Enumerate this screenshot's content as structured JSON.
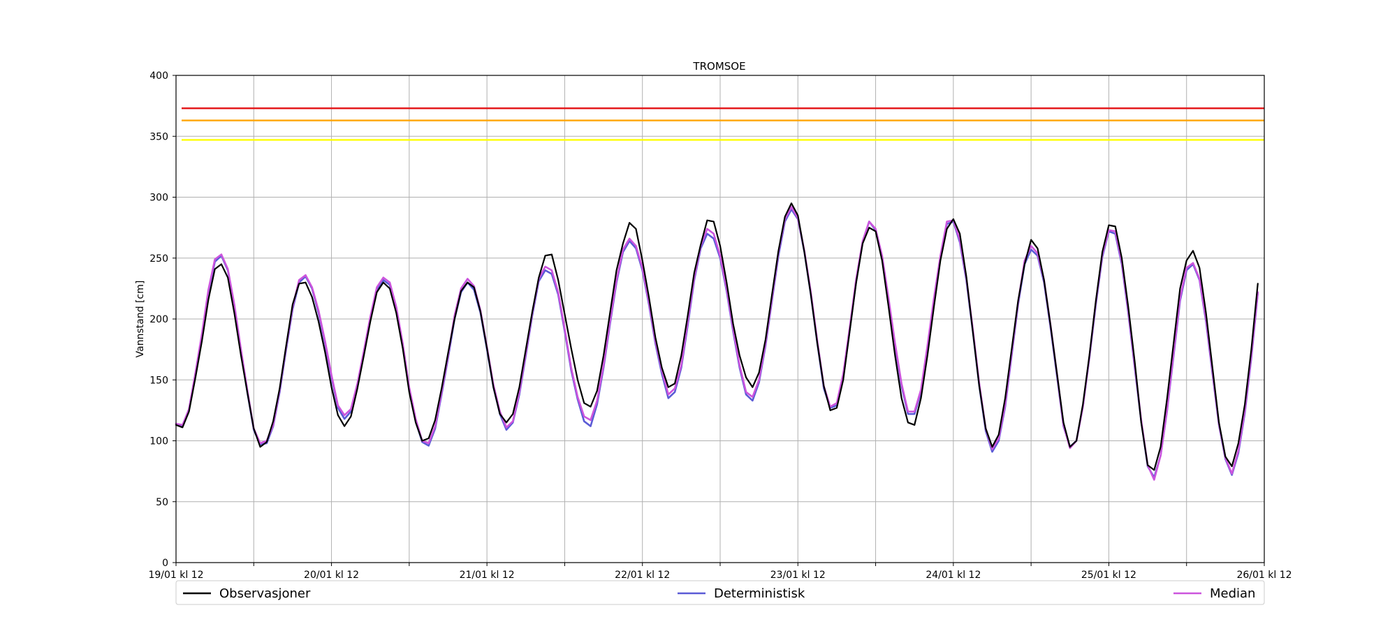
{
  "chart_data": {
    "type": "line",
    "title": "TROMSOE",
    "xlabel": "",
    "ylabel": "Vannstand [cm]",
    "x_unit": "hours",
    "x_step_hours": 1,
    "xlim": [
      0,
      168
    ],
    "ylim": [
      0,
      400
    ],
    "yticks": [
      0,
      50,
      100,
      150,
      200,
      250,
      300,
      350,
      400
    ],
    "xticks": [
      {
        "hour": 0,
        "label": "19/01 kl 12"
      },
      {
        "hour": 12,
        "label": ""
      },
      {
        "hour": 24,
        "label": "20/01 kl 12"
      },
      {
        "hour": 36,
        "label": ""
      },
      {
        "hour": 48,
        "label": "21/01 kl 12"
      },
      {
        "hour": 60,
        "label": ""
      },
      {
        "hour": 72,
        "label": "22/01 kl 12"
      },
      {
        "hour": 84,
        "label": ""
      },
      {
        "hour": 96,
        "label": "23/01 kl 12"
      },
      {
        "hour": 108,
        "label": ""
      },
      {
        "hour": 120,
        "label": "24/01 kl 12"
      },
      {
        "hour": 132,
        "label": ""
      },
      {
        "hour": 144,
        "label": "25/01 kl 12"
      },
      {
        "hour": 156,
        "label": ""
      },
      {
        "hour": 168,
        "label": "26/01 kl 12"
      }
    ],
    "grid": true,
    "legend": "bottom",
    "thresholds": [
      {
        "value": 373,
        "color": "#e41a1c"
      },
      {
        "value": 363,
        "color": "#ffa500"
      },
      {
        "value": 347,
        "color": "#ffff00"
      }
    ],
    "series": [
      {
        "name": "Observasjoner",
        "color": "#000000",
        "values": [
          113,
          111,
          124,
          152,
          182,
          216,
          241,
          245,
          234,
          205,
          171,
          140,
          110,
          95,
          99,
          116,
          143,
          178,
          212,
          229,
          230,
          218,
          198,
          173,
          144,
          121,
          112,
          120,
          143,
          170,
          198,
          222,
          230,
          225,
          205,
          176,
          140,
          115,
          100,
          102,
          117,
          143,
          172,
          200,
          223,
          230,
          226,
          206,
          176,
          144,
          122,
          115,
          122,
          144,
          175,
          206,
          234,
          252,
          253,
          232,
          204,
          176,
          150,
          131,
          128,
          141,
          170,
          205,
          240,
          262,
          279,
          274,
          248,
          218,
          185,
          160,
          144,
          147,
          170,
          203,
          238,
          261,
          281,
          280,
          260,
          230,
          196,
          170,
          152,
          144,
          156,
          183,
          220,
          256,
          284,
          295,
          285,
          255,
          220,
          180,
          145,
          125,
          127,
          150,
          190,
          230,
          262,
          275,
          272,
          248,
          210,
          170,
          135,
          115,
          113,
          135,
          170,
          210,
          248,
          274,
          282,
          270,
          235,
          190,
          145,
          110,
          95,
          105,
          135,
          175,
          215,
          245,
          265,
          258,
          232,
          195,
          155,
          115,
          95,
          100,
          130,
          170,
          215,
          255,
          277,
          276,
          250,
          210,
          165,
          115,
          80,
          76,
          95,
          135,
          180,
          225,
          248,
          256,
          242,
          205,
          160,
          115,
          87,
          79,
          98,
          130,
          175,
          229
        ]
      },
      {
        "name": "Deterministisk",
        "color": "#5b5bd6",
        "values": [
          114,
          112,
          126,
          155,
          186,
          222,
          247,
          252,
          240,
          210,
          175,
          140,
          109,
          97,
          98,
          112,
          140,
          175,
          208,
          230,
          235,
          225,
          205,
          180,
          152,
          127,
          118,
          124,
          145,
          172,
          200,
          224,
          232,
          228,
          208,
          178,
          142,
          116,
          99,
          96,
          110,
          138,
          168,
          200,
          222,
          230,
          224,
          205,
          175,
          144,
          122,
          109,
          115,
          138,
          170,
          203,
          231,
          240,
          237,
          220,
          190,
          158,
          134,
          116,
          112,
          130,
          160,
          196,
          230,
          255,
          264,
          258,
          240,
          212,
          180,
          155,
          135,
          140,
          160,
          195,
          232,
          258,
          270,
          266,
          250,
          223,
          190,
          160,
          138,
          133,
          148,
          178,
          215,
          252,
          280,
          290,
          282,
          255,
          220,
          180,
          143,
          127,
          129,
          152,
          191,
          231,
          263,
          280,
          273,
          250,
          215,
          178,
          145,
          122,
          122,
          140,
          175,
          215,
          250,
          278,
          280,
          263,
          232,
          190,
          145,
          108,
          91,
          100,
          128,
          170,
          212,
          245,
          257,
          252,
          230,
          193,
          153,
          112,
          95,
          100,
          128,
          168,
          212,
          251,
          272,
          270,
          245,
          205,
          160,
          116,
          79,
          70,
          88,
          125,
          170,
          215,
          240,
          245,
          232,
          198,
          155,
          113,
          85,
          72,
          90,
          123,
          168,
          221
        ]
      },
      {
        "name": "Median",
        "color": "#cc55dd",
        "values": [
          114,
          113,
          126,
          156,
          188,
          224,
          249,
          253,
          241,
          212,
          176,
          142,
          110,
          98,
          100,
          113,
          142,
          177,
          210,
          232,
          236,
          226,
          207,
          182,
          154,
          129,
          121,
          126,
          147,
          174,
          202,
          226,
          234,
          230,
          210,
          180,
          144,
          118,
          100,
          98,
          112,
          140,
          170,
          203,
          225,
          233,
          227,
          207,
          177,
          146,
          124,
          111,
          116,
          140,
          172,
          205,
          233,
          243,
          240,
          222,
          192,
          160,
          136,
          120,
          117,
          133,
          162,
          198,
          232,
          257,
          266,
          260,
          242,
          214,
          182,
          158,
          138,
          143,
          162,
          198,
          234,
          260,
          274,
          270,
          252,
          225,
          192,
          162,
          140,
          136,
          150,
          180,
          217,
          255,
          282,
          292,
          283,
          256,
          222,
          182,
          145,
          128,
          131,
          155,
          193,
          233,
          264,
          280,
          274,
          252,
          217,
          180,
          147,
          124,
          124,
          142,
          178,
          217,
          252,
          280,
          281,
          265,
          234,
          192,
          147,
          110,
          93,
          102,
          130,
          172,
          214,
          248,
          260,
          254,
          232,
          195,
          155,
          113,
          94,
          100,
          128,
          169,
          214,
          253,
          273,
          272,
          247,
          207,
          162,
          117,
          80,
          68,
          88,
          126,
          172,
          217,
          242,
          246,
          233,
          200,
          157,
          114,
          86,
          73,
          92,
          125,
          170,
          222
        ]
      }
    ]
  }
}
